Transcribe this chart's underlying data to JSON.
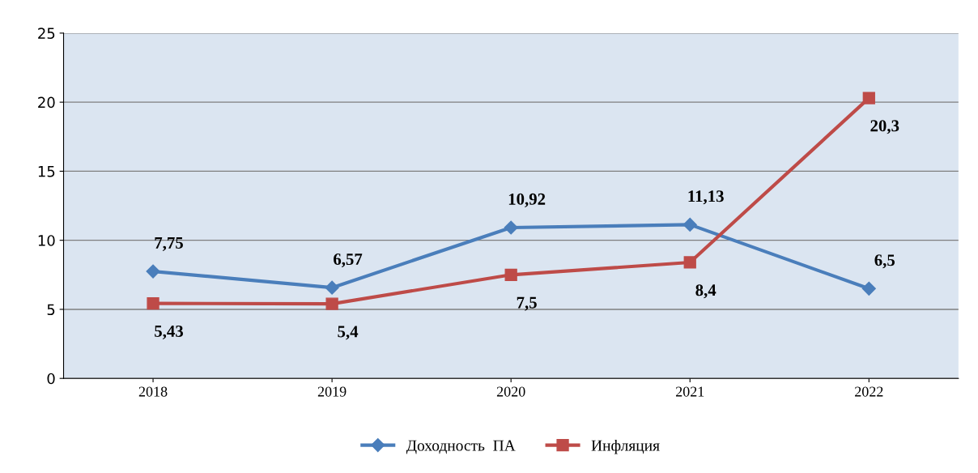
{
  "chart_data": {
    "type": "line",
    "categories": [
      "2018",
      "2019",
      "2020",
      "2021",
      "2022"
    ],
    "series": [
      {
        "name": "Доходность  ПА",
        "color": "#4a7ebb",
        "marker": "diamond",
        "values": [
          7.75,
          6.57,
          10.92,
          11.13,
          6.5
        ],
        "value_labels": [
          "7,75",
          "6,57",
          "10,92",
          "11,13",
          "6,5"
        ]
      },
      {
        "name": "Инфляция",
        "color": "#be4b48",
        "marker": "square",
        "values": [
          5.43,
          5.4,
          7.5,
          8.4,
          20.3
        ],
        "value_labels": [
          "5,43",
          "5,4",
          "7,5",
          "8,4",
          "20,3"
        ]
      }
    ],
    "ylim": [
      0,
      25
    ],
    "yticks": [
      0,
      5,
      10,
      15,
      20,
      25
    ],
    "grid": "y",
    "legend": "bottom",
    "line_style": "solid"
  }
}
